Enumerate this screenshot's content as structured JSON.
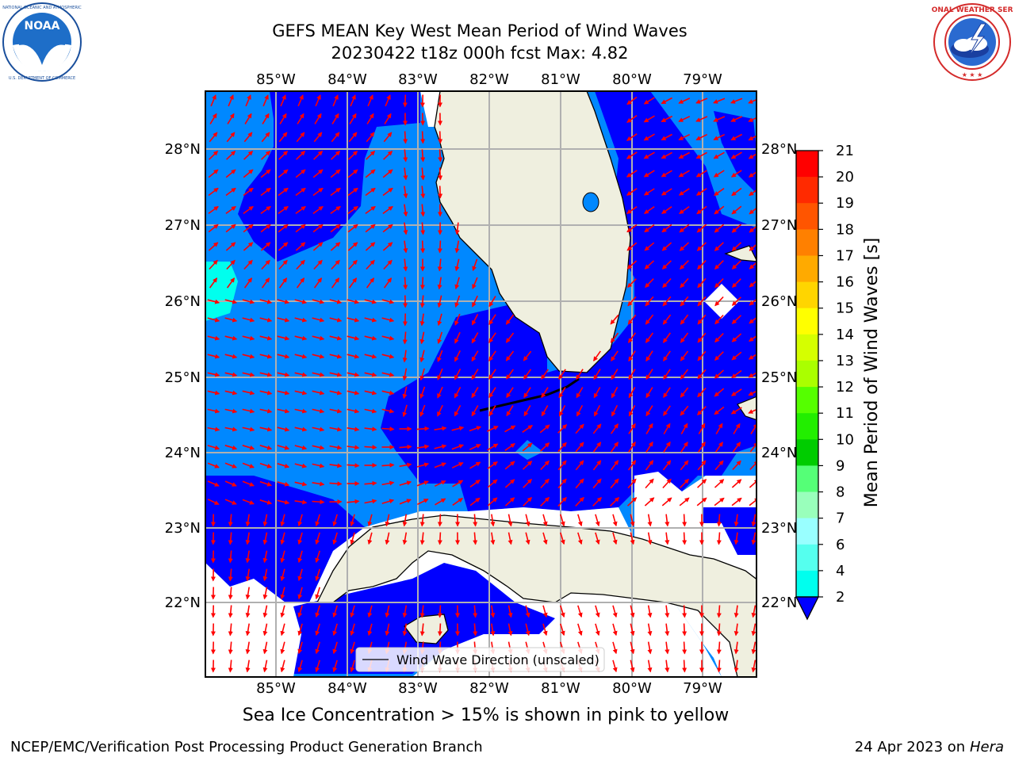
{
  "header": {
    "title_line1": "GEFS MEAN Key West Mean Period of Wind Waves",
    "title_line2": "20230422 t18z 000h fcst   Max: 4.82"
  },
  "logos": {
    "left": {
      "name": "NOAA",
      "text": "NOAA",
      "ring_text": "NATIONAL OCEANIC AND ATMOSPHERIC ADMINISTRATION · U.S. DEPARTMENT OF COMMERCE"
    },
    "right": {
      "name": "National Weather Service",
      "ring_text": "NATIONAL WEATHER SERVICE"
    }
  },
  "map": {
    "region": "Key West / South Florida / Straits of Florida / Cuba",
    "lon_labels": [
      "85°W",
      "84°W",
      "83°W",
      "82°W",
      "81°W",
      "80°W",
      "79°W"
    ],
    "lat_labels": [
      "28°N",
      "27°N",
      "26°N",
      "25°N",
      "24°N",
      "23°N",
      "22°N"
    ],
    "legend": "Wind Wave Direction (unscaled)",
    "arrow_color": "#ff0000",
    "land_color": "#efefdf",
    "grid_color": "#b0b0b0"
  },
  "colorbar": {
    "label": "Mean Period of Wind Waves [s]",
    "ticks": [
      "21",
      "20",
      "19",
      "18",
      "17",
      "16",
      "15",
      "14",
      "13",
      "12",
      "11",
      "10",
      "9",
      "8",
      "7",
      "6",
      "4",
      "2"
    ],
    "colors": [
      "#ff0000",
      "#ff2a00",
      "#ff5500",
      "#ff8000",
      "#ffaa00",
      "#ffd500",
      "#ffff00",
      "#d5ff00",
      "#aaff00",
      "#55ff00",
      "#22ee00",
      "#00cc00",
      "#55ff77",
      "#99ffbb",
      "#99ffff",
      "#55ffee",
      "#00ffee",
      "#00ccff",
      "#0088ff"
    ],
    "extend_color": "#0000ff"
  },
  "footer": {
    "note": "Sea Ice Concentration > 15% is shown in pink to yellow",
    "credit": "NCEP/EMC/Verification Post Processing Product Generation Branch",
    "date_prefix": "24 Apr 2023 on ",
    "host": "Hera"
  }
}
